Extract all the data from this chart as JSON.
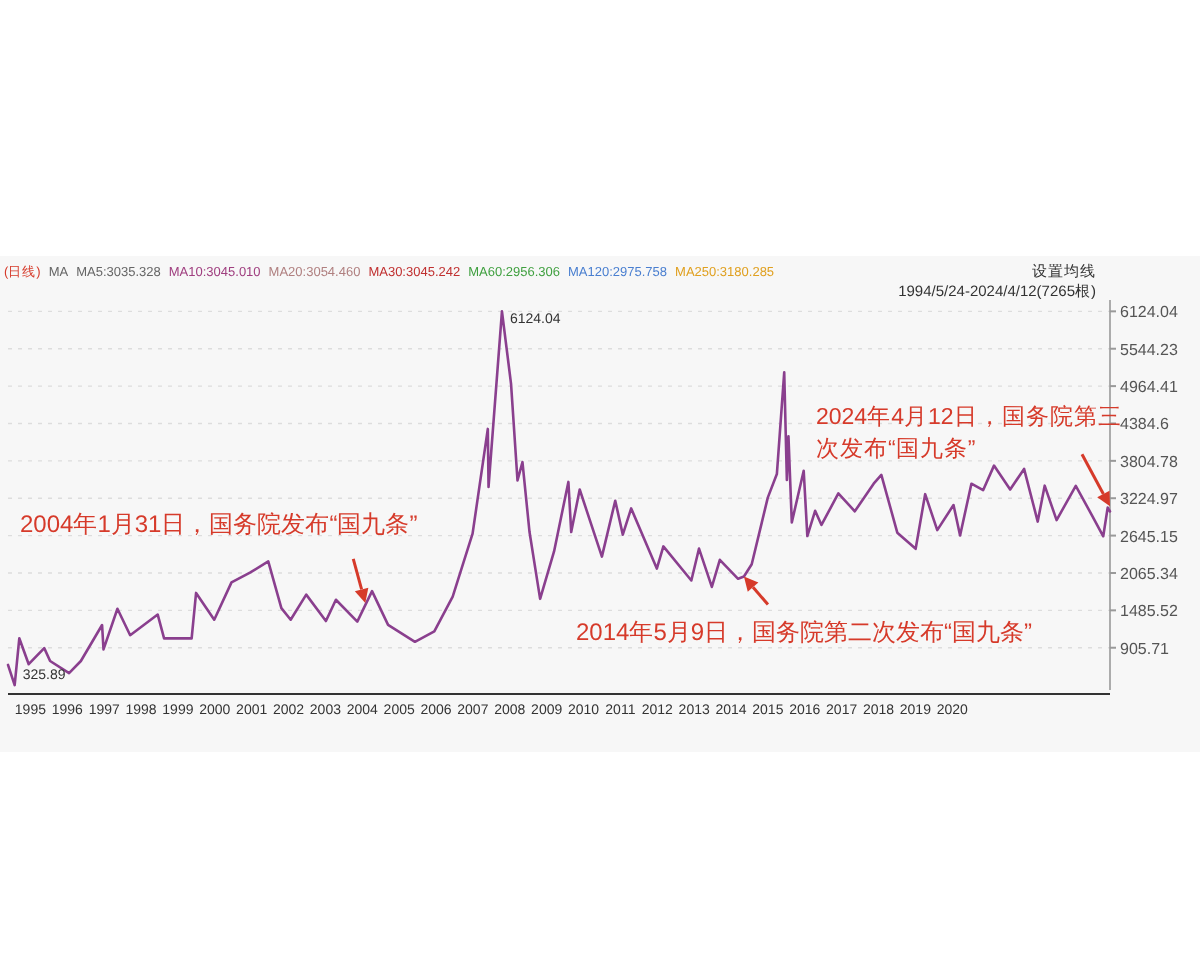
{
  "chart_data": {
    "type": "line",
    "grid": "y",
    "x": [
      "1994-05-24",
      "1994-07-29",
      "1994-09-13",
      "1994-12-15",
      "1995-05-18",
      "1995-07-15",
      "1996-01-19",
      "1996-05-15",
      "1996-12-11",
      "1996-12-25",
      "1997-05-12",
      "1997-09-15",
      "1998-06-15",
      "1998-08-17",
      "1999-05-17",
      "1999-06-30",
      "1999-12-27",
      "2000-06-15",
      "2000-12-15",
      "2001-06-14",
      "2001-10-22",
      "2002-01-22",
      "2002-06-25",
      "2003-01-06",
      "2003-04-15",
      "2003-11-13",
      "2004-04-07",
      "2004-09-13",
      "2005-06-06",
      "2005-12-15",
      "2006-06-15",
      "2006-12-29",
      "2007-05-29",
      "2007-06-05",
      "2007-10-16",
      "2008-01-14",
      "2008-03-18",
      "2008-05-06",
      "2008-07-15",
      "2008-10-28",
      "2009-03-15",
      "2009-08-04",
      "2009-09-01",
      "2009-11-24",
      "2010-07-02",
      "2010-11-11",
      "2011-01-25",
      "2011-04-18",
      "2011-12-28",
      "2012-03-02",
      "2012-12-04",
      "2013-02-18",
      "2013-06-25",
      "2013-09-12",
      "2014-03-12",
      "2014-05-09",
      "2014-07-25",
      "2014-12-31",
      "2015-03-31",
      "2015-06-12",
      "2015-07-08",
      "2015-07-24",
      "2015-08-26",
      "2015-12-22",
      "2016-01-27",
      "2016-04-13",
      "2016-06-15",
      "2016-11-29",
      "2017-05-11",
      "2017-11-14",
      "2018-01-29",
      "2018-07-06",
      "2019-01-04",
      "2019-04-08",
      "2019-08-06",
      "2020-01-14",
      "2020-03-19",
      "2020-07-09",
      "2020-11-02",
      "2021-02-18",
      "2021-07-28",
      "2021-12-13",
      "2022-04-27",
      "2022-07-05",
      "2022-10-31",
      "2023-05-09",
      "2023-10-23",
      "2024-02-05",
      "2024-03-20",
      "2024-04-12"
    ],
    "series": [
      {
        "color": "#8a3f8e",
        "values": [
          640,
          325.89,
          1052,
          650,
          900,
          700,
          512,
          700,
          1258,
          880,
          1510,
          1100,
          1420,
          1050,
          1050,
          1756,
          1340,
          1920,
          2070,
          2245,
          1520,
          1340,
          1730,
          1320,
          1650,
          1310,
          1783,
          1260,
          998,
          1160,
          1700,
          2675,
          4300,
          3400,
          6124.04,
          5000,
          3500,
          3786,
          2700,
          1664,
          2400,
          3478,
          2700,
          3360,
          2319,
          3186,
          2660,
          3067,
          2134,
          2478,
          1949,
          2444,
          1849,
          2270,
          1975,
          2010,
          2200,
          3234,
          3600,
          5178,
          3507,
          4184,
          2850,
          3650,
          2638,
          3030,
          2810,
          3300,
          3022,
          3450,
          3587,
          2690,
          2440,
          3288,
          2730,
          3120,
          2646,
          3450,
          3350,
          3731,
          3360,
          3680,
          2863,
          3420,
          2885,
          3418,
          2940,
          2635,
          3080,
          3019
        ]
      }
    ],
    "xlim": [
      "1994-05-24",
      "2024-04-12"
    ],
    "xticks": [
      {
        "value": "1995-01-01",
        "label": "1995"
      },
      {
        "value": "1996-01-01",
        "label": "1996"
      },
      {
        "value": "1997-01-01",
        "label": "1997"
      },
      {
        "value": "1998-01-01",
        "label": "1998"
      },
      {
        "value": "1999-01-01",
        "label": "1999"
      },
      {
        "value": "2000-01-01",
        "label": "2000"
      },
      {
        "value": "2001-01-01",
        "label": "2001"
      },
      {
        "value": "2002-01-01",
        "label": "2002"
      },
      {
        "value": "2003-01-01",
        "label": "2003"
      },
      {
        "value": "2004-01-01",
        "label": "2004"
      },
      {
        "value": "2005-01-01",
        "label": "2005"
      },
      {
        "value": "2006-01-01",
        "label": "2006"
      },
      {
        "value": "2007-01-01",
        "label": "2007"
      },
      {
        "value": "2008-01-01",
        "label": "2008"
      },
      {
        "value": "2009-01-01",
        "label": "2009"
      },
      {
        "value": "2010-01-01",
        "label": "2010"
      },
      {
        "value": "2011-01-01",
        "label": "2011"
      },
      {
        "value": "2012-01-01",
        "label": "2012"
      },
      {
        "value": "2013-01-01",
        "label": "2013"
      },
      {
        "value": "2014-01-01",
        "label": "2014"
      },
      {
        "value": "2015-01-01",
        "label": "2015"
      },
      {
        "value": "2016-01-01",
        "label": "2016"
      },
      {
        "value": "2017-01-01",
        "label": "2017"
      },
      {
        "value": "2018-01-01",
        "label": "2018"
      },
      {
        "value": "2019-01-01",
        "label": "2019"
      },
      {
        "value": "2020-01-01",
        "label": "2020"
      }
    ],
    "ylim": [
      250,
      6300
    ],
    "yticks": [
      905.71,
      1485.52,
      2065.34,
      2645.15,
      3224.97,
      3804.78,
      4384.6,
      4964.41,
      5544.23,
      6124.04
    ],
    "annotations": [
      "(日线)",
      "MA",
      "MA5:3035.328",
      "MA10:3045.010",
      "MA20:3054.460",
      "MA30:3045.242",
      "MA60:2956.306",
      "MA120:2975.758",
      "MA250:3180.285",
      "设置均线",
      "1994/5/24-2024/4/12(7265根)",
      {
        "text": "6124.04",
        "x": "2007-10-16",
        "y": 6124.04
      },
      {
        "text": "325.89",
        "x": "1994-07-29",
        "y": 325.89
      },
      {
        "text": "2004年1月31日，国务院发布“国九条”",
        "x": "2004-01-31",
        "y": 1600
      },
      {
        "text": "2014年5月9日，国务院第二次发布“国九条”",
        "x": "2014-05-09",
        "y": 2010
      },
      {
        "text": "2024年4月12日，国务院第三次发布“国九条”",
        "x": "2024-04-12",
        "y": 3100
      }
    ]
  }
}
